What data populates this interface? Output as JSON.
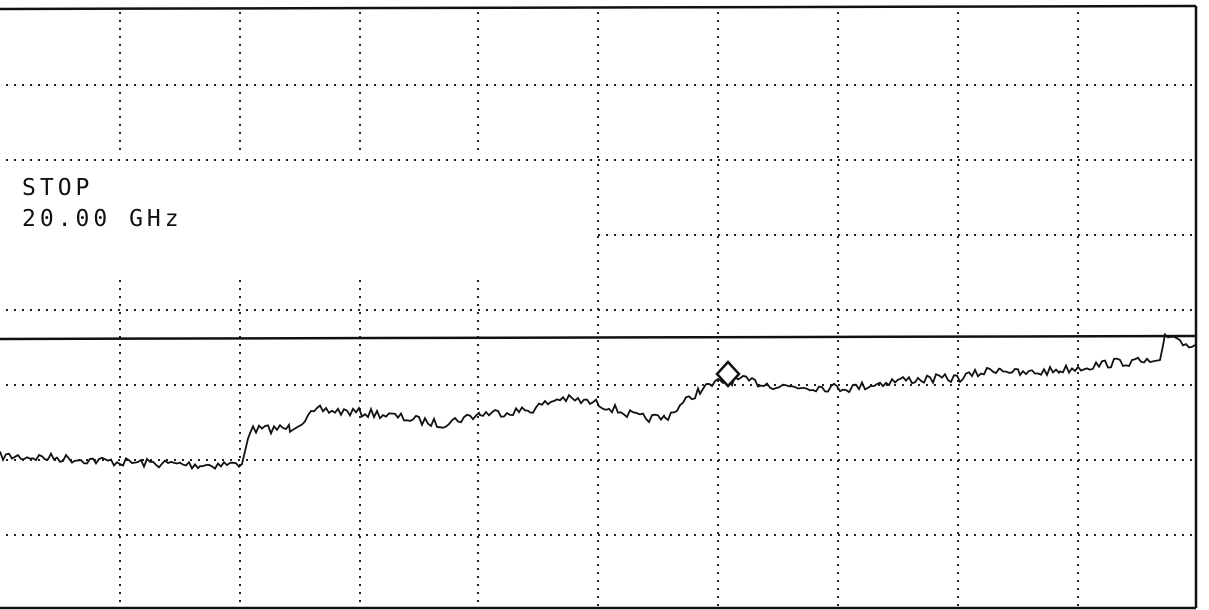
{
  "display": {
    "stop_label": "STOP",
    "stop_value": "20.00 GHz"
  }
}
